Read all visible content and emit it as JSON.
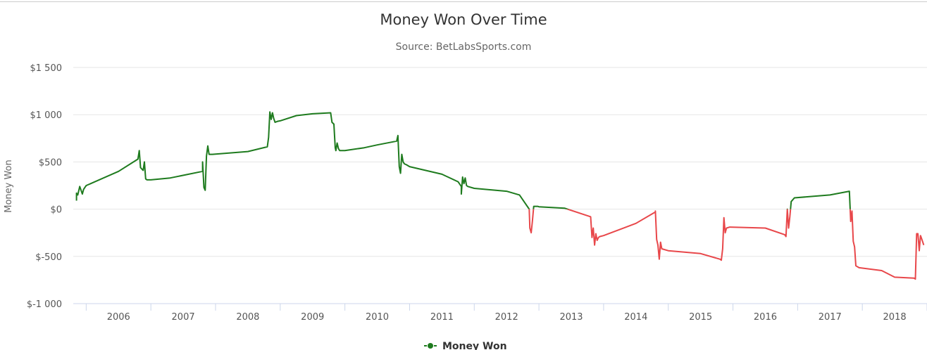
{
  "chart_data": {
    "type": "line",
    "title": "Money Won Over Time",
    "subtitle": "Source: BetLabsSports.com",
    "ylabel": "Money Won",
    "xlabel": "",
    "y_ticks": [
      "$1 500",
      "$1 000",
      "$500",
      "$0",
      "$-500",
      "$-1 000"
    ],
    "y_tick_values": [
      1500,
      1000,
      500,
      0,
      -500,
      -1000
    ],
    "x_ticks": [
      "2006",
      "2007",
      "2008",
      "2009",
      "2010",
      "2011",
      "2012",
      "2013",
      "2014",
      "2015",
      "2016",
      "2017",
      "2018"
    ],
    "xlim": [
      2005.3,
      2018.5
    ],
    "ylim": [
      -1000,
      1500
    ],
    "grid": true,
    "legend": "bottom-center",
    "series": [
      {
        "name": "Money Won",
        "positive_color": "#1e7b1e",
        "negative_color": "#e8474a",
        "x": [
          2005.35,
          2005.35,
          2005.37,
          2005.4,
          2005.44,
          2005.46,
          2005.48,
          2005.5,
          2006.0,
          2006.3,
          2006.32,
          2006.34,
          2006.38,
          2006.4,
          2006.42,
          2006.44,
          2006.46,
          2006.5,
          2006.8,
          2007.3,
          2007.3,
          2007.32,
          2007.34,
          2007.36,
          2007.38,
          2007.4,
          2007.45,
          2008.0,
          2008.3,
          2008.32,
          2008.34,
          2008.36,
          2008.38,
          2008.4,
          2008.42,
          2008.44,
          2008.46,
          2008.5,
          2008.75,
          2009.0,
          2009.28,
          2009.3,
          2009.33,
          2009.35,
          2009.36,
          2009.38,
          2009.4,
          2009.42,
          2009.5,
          2009.8,
          2010.0,
          2010.3,
          2010.32,
          2010.34,
          2010.36,
          2010.38,
          2010.4,
          2010.42,
          2010.45,
          2010.5,
          2011.0,
          2011.25,
          2011.3,
          2011.3,
          2011.32,
          2011.34,
          2011.36,
          2011.38,
          2011.4,
          2011.5,
          2012.0,
          2012.2,
          2012.35,
          2012.36,
          2012.38,
          2012.4,
          2012.42,
          2012.44,
          2012.46,
          2012.48,
          2012.5,
          2012.9,
          2013.3,
          2013.32,
          2013.34,
          2013.36,
          2013.38,
          2013.4,
          2013.42,
          2013.44,
          2013.5,
          2014.0,
          2014.3,
          2014.3,
          2014.32,
          2014.34,
          2014.36,
          2014.38,
          2014.4,
          2014.5,
          2015.0,
          2015.3,
          2015.32,
          2015.34,
          2015.36,
          2015.38,
          2015.4,
          2015.45,
          2016.0,
          2016.3,
          2016.32,
          2016.34,
          2016.36,
          2016.38,
          2016.4,
          2016.45,
          2017.0,
          2017.3,
          2017.3,
          2017.32,
          2017.34,
          2017.36,
          2017.38,
          2017.4,
          2017.45,
          2017.8,
          2018.0,
          2018.3,
          2018.32,
          2018.34,
          2018.36,
          2018.38,
          2018.4,
          2018.42,
          2018.45
        ],
        "y": [
          90,
          170,
          150,
          240,
          160,
          210,
          230,
          250,
          400,
          530,
          620,
          440,
          410,
          500,
          320,
          310,
          310,
          310,
          330,
          400,
          500,
          230,
          200,
          560,
          670,
          580,
          580,
          610,
          660,
          760,
          1030,
          950,
          1020,
          960,
          920,
          925,
          930,
          935,
          990,
          1010,
          1020,
          920,
          900,
          650,
          620,
          700,
          640,
          620,
          620,
          650,
          680,
          720,
          780,
          450,
          380,
          580,
          500,
          480,
          470,
          450,
          370,
          290,
          240,
          160,
          340,
          270,
          330,
          250,
          240,
          220,
          190,
          150,
          0,
          -200,
          -250,
          -120,
          30,
          30,
          30,
          30,
          25,
          10,
          -80,
          -300,
          -200,
          -380,
          -260,
          -330,
          -300,
          -290,
          -280,
          -150,
          -30,
          -20,
          -320,
          -380,
          -530,
          -350,
          -420,
          -440,
          -470,
          -530,
          -540,
          -420,
          -90,
          -250,
          -200,
          -190,
          -200,
          -270,
          -290,
          0,
          -200,
          -80,
          80,
          120,
          150,
          190,
          190,
          -130,
          -20,
          -340,
          -400,
          -600,
          -620,
          -650,
          -720,
          -730,
          -740,
          -260,
          -260,
          -440,
          -280,
          -320,
          -380
        ]
      }
    ]
  }
}
